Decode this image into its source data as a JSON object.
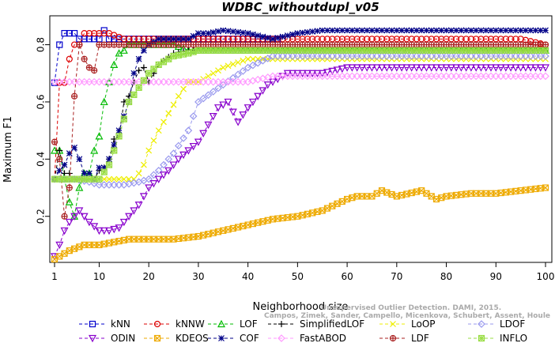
{
  "chart_data": {
    "type": "line",
    "title": "WDBC_withoutdupl_v05",
    "xlabel": "Neighborhood size",
    "ylabel": "Maximum F1",
    "xlim": [
      1,
      100
    ],
    "ylim": [
      0.05,
      0.89
    ],
    "xticks": [
      1,
      10,
      20,
      30,
      40,
      50,
      60,
      70,
      80,
      90,
      100
    ],
    "yticks": [
      0.2,
      0.4,
      0.6,
      0.8
    ],
    "grid": false,
    "legend_position": "bottom",
    "watermark": [
      "Campos, Zimek, Sander, Campello, Micenkova, Schubert, Assent, Houle",
      "Unsupervised Outlier Detection. DAMI, 2015."
    ],
    "series": [
      {
        "name": "kNN",
        "color": "#0000cc",
        "marker": "square",
        "x": [
          1,
          2,
          3,
          4,
          5,
          6,
          7,
          8,
          9,
          10,
          11,
          12,
          15,
          20,
          30,
          40,
          46,
          47,
          48,
          50,
          60,
          70,
          80,
          90,
          100
        ],
        "y": [
          0.667,
          0.8,
          0.84,
          0.84,
          0.84,
          0.82,
          0.82,
          0.82,
          0.82,
          0.82,
          0.85,
          0.82,
          0.82,
          0.82,
          0.82,
          0.82,
          0.82,
          0.78,
          0.78,
          0.78,
          0.78,
          0.78,
          0.78,
          0.78,
          0.78
        ]
      },
      {
        "name": "kNNW",
        "color": "#dd0000",
        "marker": "circle",
        "x": [
          1,
          2,
          3,
          4,
          5,
          6,
          7,
          8,
          10,
          12,
          15,
          20,
          30,
          40,
          45,
          46,
          50,
          60,
          70,
          80,
          90,
          95,
          100
        ],
        "y": [
          0.33,
          0.667,
          0.667,
          0.75,
          0.8,
          0.8,
          0.84,
          0.84,
          0.84,
          0.84,
          0.82,
          0.82,
          0.82,
          0.82,
          0.82,
          0.82,
          0.82,
          0.82,
          0.82,
          0.82,
          0.82,
          0.82,
          0.8
        ]
      },
      {
        "name": "LOF",
        "color": "#00bb00",
        "marker": "triangle",
        "x": [
          1,
          2,
          3,
          4,
          5,
          6,
          7,
          8,
          9,
          10,
          11,
          12,
          13,
          14,
          15,
          16,
          17,
          18,
          19,
          20,
          22,
          25,
          28,
          30,
          40,
          50,
          60,
          70,
          80,
          90,
          100
        ],
        "y": [
          0.43,
          0.43,
          0.33,
          0.25,
          0.2,
          0.3,
          0.35,
          0.35,
          0.43,
          0.48,
          0.6,
          0.67,
          0.73,
          0.77,
          0.78,
          0.8,
          0.8,
          0.8,
          0.8,
          0.8,
          0.8,
          0.8,
          0.78,
          0.78,
          0.78,
          0.78,
          0.78,
          0.78,
          0.78,
          0.78,
          0.78
        ]
      },
      {
        "name": "SimplifiedLOF",
        "color": "#000000",
        "marker": "plus",
        "x": [
          1,
          2,
          3,
          4,
          5,
          6,
          7,
          8,
          9,
          10,
          11,
          12,
          13,
          14,
          15,
          16,
          17,
          18,
          19,
          20,
          22,
          25,
          28,
          30,
          35,
          40,
          45,
          50,
          60,
          70,
          80,
          90,
          100
        ],
        "y": [
          0.33,
          0.43,
          0.35,
          0.35,
          0.33,
          0.33,
          0.33,
          0.33,
          0.33,
          0.36,
          0.37,
          0.4,
          0.47,
          0.48,
          0.6,
          0.62,
          0.67,
          0.71,
          0.72,
          0.67,
          0.73,
          0.77,
          0.78,
          0.78,
          0.78,
          0.78,
          0.78,
          0.78,
          0.78,
          0.78,
          0.78,
          0.78,
          0.78
        ]
      },
      {
        "name": "LoOP",
        "color": "#eeee00",
        "marker": "cross",
        "x": [
          1,
          5,
          10,
          12,
          14,
          15,
          16,
          17,
          18,
          19,
          20,
          22,
          24,
          26,
          28,
          30,
          35,
          40,
          50,
          60,
          70,
          80,
          90,
          100
        ],
        "y": [
          0.33,
          0.33,
          0.33,
          0.33,
          0.33,
          0.33,
          0.33,
          0.33,
          0.35,
          0.38,
          0.43,
          0.5,
          0.56,
          0.62,
          0.67,
          0.67,
          0.72,
          0.75,
          0.75,
          0.75,
          0.75,
          0.75,
          0.75,
          0.75
        ]
      },
      {
        "name": "LDOF",
        "color": "#9999ee",
        "marker": "diamond",
        "x": [
          1,
          5,
          8,
          10,
          12,
          15,
          18,
          20,
          22,
          25,
          28,
          30,
          35,
          40,
          45,
          50,
          60,
          70,
          80,
          90,
          100
        ],
        "y": [
          0.33,
          0.33,
          0.32,
          0.31,
          0.31,
          0.31,
          0.32,
          0.33,
          0.36,
          0.42,
          0.5,
          0.6,
          0.66,
          0.72,
          0.76,
          0.76,
          0.76,
          0.76,
          0.76,
          0.76,
          0.76
        ]
      },
      {
        "name": "ODIN",
        "color": "#8800cc",
        "marker": "triangle-down",
        "x": [
          1,
          2,
          3,
          4,
          5,
          6,
          7,
          8,
          10,
          12,
          14,
          16,
          18,
          20,
          22,
          24,
          26,
          28,
          30,
          32,
          34,
          36,
          38,
          40,
          44,
          48,
          50,
          55,
          60,
          70,
          80,
          90,
          100
        ],
        "y": [
          0.06,
          0.1,
          0.15,
          0.18,
          0.2,
          0.22,
          0.2,
          0.18,
          0.15,
          0.15,
          0.16,
          0.2,
          0.24,
          0.3,
          0.33,
          0.36,
          0.4,
          0.43,
          0.46,
          0.52,
          0.58,
          0.6,
          0.53,
          0.58,
          0.66,
          0.7,
          0.7,
          0.7,
          0.72,
          0.72,
          0.72,
          0.72,
          0.72
        ]
      },
      {
        "name": "KDEOS",
        "color": "#eeaa00",
        "marker": "square-x",
        "x": [
          1,
          4,
          7,
          10,
          13,
          16,
          20,
          25,
          30,
          35,
          40,
          45,
          50,
          55,
          60,
          62,
          65,
          67,
          70,
          75,
          78,
          80,
          85,
          90,
          95,
          100
        ],
        "y": [
          0.05,
          0.08,
          0.1,
          0.1,
          0.11,
          0.12,
          0.12,
          0.12,
          0.13,
          0.15,
          0.17,
          0.19,
          0.2,
          0.22,
          0.26,
          0.27,
          0.27,
          0.29,
          0.27,
          0.29,
          0.26,
          0.27,
          0.28,
          0.28,
          0.29,
          0.3
        ]
      },
      {
        "name": "COF",
        "color": "#000088",
        "marker": "asterisk",
        "x": [
          1,
          2,
          3,
          4,
          5,
          6,
          7,
          8,
          9,
          10,
          11,
          12,
          13,
          14,
          15,
          16,
          17,
          18,
          19,
          20,
          22,
          24,
          26,
          28,
          30,
          32,
          35,
          40,
          45,
          50,
          55,
          60,
          70,
          80,
          90,
          100
        ],
        "y": [
          0.33,
          0.36,
          0.38,
          0.42,
          0.44,
          0.4,
          0.35,
          0.35,
          0.33,
          0.37,
          0.37,
          0.4,
          0.45,
          0.5,
          0.55,
          0.6,
          0.7,
          0.75,
          0.78,
          0.8,
          0.82,
          0.82,
          0.82,
          0.82,
          0.84,
          0.84,
          0.85,
          0.84,
          0.82,
          0.84,
          0.85,
          0.85,
          0.85,
          0.85,
          0.85,
          0.85
        ]
      },
      {
        "name": "FastABOD",
        "color": "#ff99ff",
        "marker": "diamond",
        "x": [
          1,
          5,
          10,
          15,
          20,
          25,
          30,
          35,
          40,
          45,
          50,
          60,
          70,
          80,
          90,
          100
        ],
        "y": [
          0.67,
          0.67,
          0.67,
          0.67,
          0.67,
          0.67,
          0.67,
          0.67,
          0.67,
          0.69,
          0.69,
          0.69,
          0.69,
          0.69,
          0.69,
          0.69
        ]
      },
      {
        "name": "LDF",
        "color": "#aa2222",
        "marker": "circle-plus",
        "x": [
          1,
          2,
          3,
          4,
          5,
          6,
          7,
          8,
          9,
          10,
          12,
          15,
          20,
          25,
          30,
          40,
          50,
          60,
          70,
          80,
          90,
          100
        ],
        "y": [
          0.46,
          0.4,
          0.2,
          0.3,
          0.62,
          0.8,
          0.75,
          0.72,
          0.71,
          0.8,
          0.8,
          0.8,
          0.8,
          0.8,
          0.8,
          0.8,
          0.8,
          0.8,
          0.8,
          0.8,
          0.8,
          0.8
        ]
      },
      {
        "name": "INFLO",
        "color": "#99dd44",
        "marker": "square-star",
        "x": [
          1,
          5,
          10,
          12,
          14,
          16,
          18,
          20,
          22,
          25,
          28,
          30,
          35,
          40,
          45,
          50,
          60,
          70,
          80,
          90,
          100
        ],
        "y": [
          0.33,
          0.33,
          0.33,
          0.38,
          0.48,
          0.6,
          0.65,
          0.7,
          0.73,
          0.76,
          0.77,
          0.78,
          0.78,
          0.78,
          0.78,
          0.78,
          0.78,
          0.78,
          0.78,
          0.78,
          0.78
        ]
      }
    ]
  }
}
